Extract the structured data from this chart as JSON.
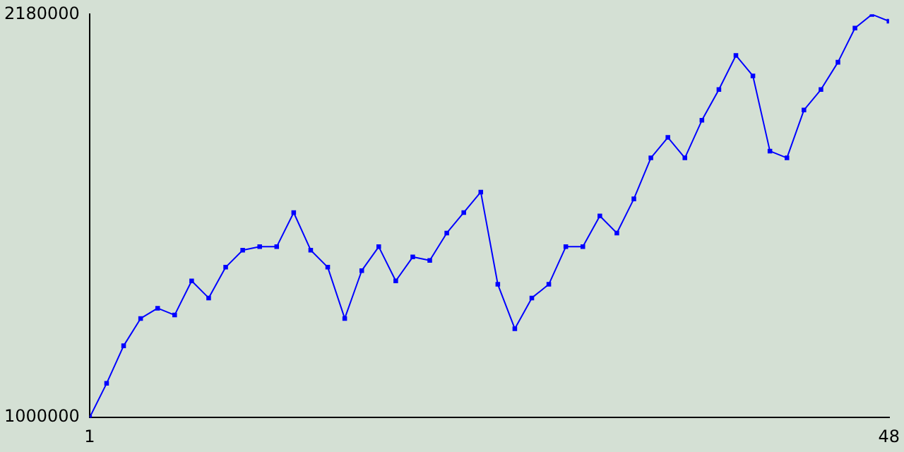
{
  "chart_data": {
    "type": "line",
    "x": [
      1,
      2,
      3,
      4,
      5,
      6,
      7,
      8,
      9,
      10,
      11,
      12,
      13,
      14,
      15,
      16,
      17,
      18,
      19,
      20,
      21,
      22,
      23,
      24,
      25,
      26,
      27,
      28,
      29,
      30,
      31,
      32,
      33,
      34,
      35,
      36,
      37,
      38,
      39,
      40,
      41,
      42,
      43,
      44,
      45,
      46,
      47,
      48
    ],
    "series": [
      {
        "color": "#0000ff",
        "values": [
          1000000,
          1100000,
          1210000,
          1290000,
          1320000,
          1300000,
          1400000,
          1350000,
          1440000,
          1490000,
          1500000,
          1500000,
          1600000,
          1490000,
          1440000,
          1290000,
          1430000,
          1500000,
          1400000,
          1470000,
          1460000,
          1540000,
          1600000,
          1660000,
          1390000,
          1260000,
          1350000,
          1390000,
          1500000,
          1500000,
          1590000,
          1540000,
          1640000,
          1760000,
          1820000,
          1760000,
          1870000,
          1960000,
          2060000,
          2000000,
          1780000,
          1760000,
          1900000,
          1960000,
          2040000,
          2140000,
          2180000,
          2160000
        ]
      }
    ],
    "xlim": [
      1,
      48
    ],
    "xticks": [
      1,
      48
    ],
    "ylim": [
      1000000,
      2180000
    ],
    "yticks": [
      1000000,
      2180000
    ],
    "grid": false,
    "legend": false,
    "marker": "square",
    "line_style": "solid"
  }
}
